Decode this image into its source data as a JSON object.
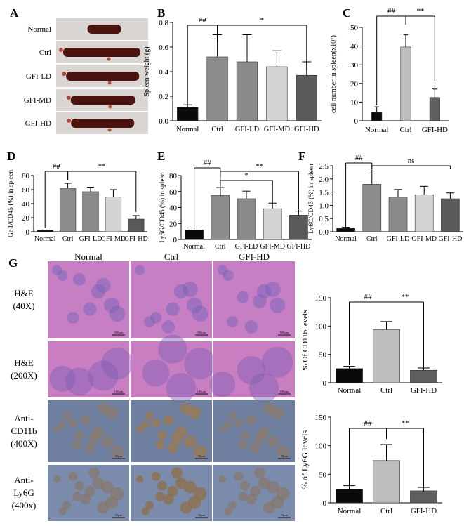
{
  "colors": {
    "black": "#0a0a0a",
    "dark_gray": "#5e5e5e",
    "mid_gray": "#8c8c8c",
    "light_gray": "#bdbdbd",
    "very_light_gray": "#d4d4d4",
    "he_pink": "#c77fc4",
    "he_purple": "#6e62b8",
    "ihc_blue": "#6f7fa0",
    "ihc_brown": "#9b7a52"
  },
  "panel_a": {
    "letter": "A",
    "row_labels": [
      "Normal",
      "Ctrl",
      "GFI-LD",
      "GFI-MD",
      "GFI-HD"
    ]
  },
  "panel_g": {
    "letter": "G",
    "column_headers": [
      "Normal",
      "Ctrl",
      "GFI-HD"
    ],
    "row_labels": [
      [
        "H&E",
        "(40X)"
      ],
      [
        "H&E",
        "(200X)"
      ],
      [
        "Anti-",
        "CD11b",
        "(400X)"
      ],
      [
        "Anti-",
        "Ly6G",
        "(400x)"
      ]
    ],
    "scalebar_labels": [
      "500μm",
      "100μm",
      "50μm",
      "50μm"
    ]
  },
  "chart_data": [
    {
      "id": "B",
      "letter": "B",
      "type": "bar",
      "categories": [
        "Normal",
        "Ctrl",
        "GFI-LD",
        "GFI-MD",
        "GFI-HD"
      ],
      "values": [
        0.11,
        0.52,
        0.48,
        0.44,
        0.37
      ],
      "errors": [
        0.02,
        0.18,
        0.22,
        0.13,
        0.11
      ],
      "ylabel": "Spleen weight (g)",
      "ylim": [
        0,
        0.8
      ],
      "yticks": [
        "0.0",
        "0.2",
        "0.4",
        "0.6",
        "0.8"
      ],
      "tick_values": [
        0,
        0.2,
        0.4,
        0.6,
        0.8
      ],
      "annotations": [
        {
          "text": "##",
          "from": 0,
          "to": 1
        },
        {
          "text": "*",
          "from": 1,
          "to": 4
        }
      ]
    },
    {
      "id": "C",
      "letter": "C",
      "type": "bar",
      "categories": [
        "Normal",
        "Ctrl",
        "GFI-HD"
      ],
      "values": [
        4.5,
        39.5,
        12.5
      ],
      "errors": [
        3,
        6.5,
        4.5
      ],
      "ylabel": "cell number in spleen(x10⁷)",
      "ylim": [
        0,
        50
      ],
      "yticks": [
        "0",
        "10",
        "20",
        "30",
        "40",
        "50"
      ],
      "tick_values": [
        0,
        10,
        20,
        30,
        40,
        50
      ],
      "annotations": [
        {
          "text": "##",
          "from": 0,
          "to": 1
        },
        {
          "text": "**",
          "from": 1,
          "to": 2
        }
      ]
    },
    {
      "id": "D",
      "letter": "D",
      "type": "bar",
      "categories": [
        "Normal",
        "Ctrl",
        "GFI-LD",
        "GFI-MD",
        "GFI-HD"
      ],
      "values": [
        2,
        62,
        57,
        49.5,
        18
      ],
      "errors": [
        0.5,
        7,
        6.5,
        10.5,
        5
      ],
      "ylabel": "Gr-1/CD45 (%) in spleen",
      "ylim": [
        0,
        80
      ],
      "yticks": [
        "0",
        "20",
        "40",
        "60",
        "80"
      ],
      "tick_values": [
        0,
        20,
        40,
        60,
        80
      ],
      "annotations": [
        {
          "text": "##",
          "from": 0,
          "to": 1
        },
        {
          "text": "**",
          "from": 1,
          "to": 4
        }
      ]
    },
    {
      "id": "E",
      "letter": "E",
      "type": "bar",
      "categories": [
        "Normal",
        "Ctrl",
        "GFI-LD",
        "GFI-MD",
        "GFI-HD"
      ],
      "values": [
        12,
        55,
        51,
        38.5,
        30.5
      ],
      "errors": [
        2.5,
        10,
        9.5,
        7,
        5
      ],
      "ylabel": "Ly6G/CD45 (%) in spleen",
      "ylim": [
        0,
        80
      ],
      "yticks": [
        "0",
        "20",
        "40",
        "60",
        "80"
      ],
      "tick_values": [
        0,
        20,
        40,
        60,
        80
      ],
      "annotations": [
        {
          "text": "##",
          "from": 0,
          "to": 1
        },
        {
          "text": "*",
          "from": 1,
          "to": 3
        },
        {
          "text": "**",
          "from": 1,
          "to": 4
        }
      ]
    },
    {
      "id": "F",
      "letter": "F",
      "type": "bar",
      "categories": [
        "Normal",
        "Ctrl",
        "GFI-LD",
        "GFI-MD",
        "GFI-HD"
      ],
      "values": [
        0.13,
        1.8,
        1.32,
        1.4,
        1.25
      ],
      "errors": [
        0.04,
        0.58,
        0.28,
        0.32,
        0.22
      ],
      "ylabel": "Ly6C/CD45 (%) in spleen",
      "ylim": [
        0,
        2.5
      ],
      "yticks": [
        "0.0",
        "0.5",
        "1.0",
        "1.5",
        "2.0",
        "2.5"
      ],
      "tick_values": [
        0,
        0.5,
        1,
        1.5,
        2,
        2.5
      ],
      "annotations": [
        {
          "text": "##",
          "from": 0,
          "to": 1
        },
        {
          "text": "ns",
          "from": 1,
          "to": 4
        }
      ]
    },
    {
      "id": "G1",
      "letter": "",
      "type": "bar",
      "categories": [
        "Normal",
        "Ctrl",
        "GFI-HD"
      ],
      "values": [
        25,
        94,
        22
      ],
      "errors": [
        4,
        14,
        4
      ],
      "ylabel": "% Of CD11b levels",
      "ylim": [
        0,
        150
      ],
      "yticks": [
        "0",
        "50",
        "100",
        "150"
      ],
      "tick_values": [
        0,
        50,
        100,
        150
      ],
      "annotations": [
        {
          "text": "##",
          "from": 0,
          "to": 1
        },
        {
          "text": "**",
          "from": 1,
          "to": 2
        }
      ]
    },
    {
      "id": "G2",
      "letter": "",
      "type": "bar",
      "categories": [
        "Normal",
        "Ctrl",
        "GFI-HD"
      ],
      "values": [
        24,
        74,
        21
      ],
      "errors": [
        6,
        28,
        6
      ],
      "ylabel": "% of Ly6G levels",
      "ylim": [
        0,
        150
      ],
      "yticks": [
        "0",
        "50",
        "100",
        "150"
      ],
      "tick_values": [
        0,
        50,
        100,
        150
      ],
      "annotations": [
        {
          "text": "##",
          "from": 0,
          "to": 1
        },
        {
          "text": "**",
          "from": 1,
          "to": 2
        }
      ]
    }
  ]
}
